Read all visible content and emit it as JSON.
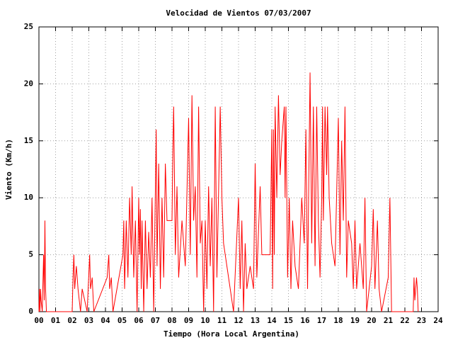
{
  "chart_data": {
    "type": "line",
    "title": "Velocidad de Vientos 07/03/2007",
    "x_label": "Tiempo (Hora Local Argentina)",
    "y_label": "Viento (Km/h)",
    "color": "#ff0000",
    "grid": true,
    "xlim": [
      0,
      24
    ],
    "ylim": [
      0,
      25
    ],
    "xticks": [
      {
        "value": 0,
        "label": "00"
      },
      {
        "value": 1,
        "label": "01"
      },
      {
        "value": 2,
        "label": "02"
      },
      {
        "value": 3,
        "label": "03"
      },
      {
        "value": 4,
        "label": "04"
      },
      {
        "value": 5,
        "label": "05"
      },
      {
        "value": 6,
        "label": "06"
      },
      {
        "value": 7,
        "label": "07"
      },
      {
        "value": 8,
        "label": "08"
      },
      {
        "value": 9,
        "label": "09"
      },
      {
        "value": 10,
        "label": "10"
      },
      {
        "value": 11,
        "label": "11"
      },
      {
        "value": 12,
        "label": "12"
      },
      {
        "value": 13,
        "label": "13"
      },
      {
        "value": 14,
        "label": "14"
      },
      {
        "value": 15,
        "label": "15"
      },
      {
        "value": 16,
        "label": "16"
      },
      {
        "value": 17,
        "label": "17"
      },
      {
        "value": 18,
        "label": "18"
      },
      {
        "value": 19,
        "label": "19"
      },
      {
        "value": 20,
        "label": "20"
      },
      {
        "value": 21,
        "label": "21"
      },
      {
        "value": 22,
        "label": "22"
      },
      {
        "value": 23,
        "label": "23"
      },
      {
        "value": 24,
        "label": "24"
      }
    ],
    "yticks": [
      0,
      5,
      10,
      15,
      20,
      25
    ],
    "x": [
      0,
      0.03,
      0.06,
      0.1,
      0.13,
      0.2,
      0.28,
      0.32,
      0.36,
      0.4,
      0.45,
      2,
      2.05,
      2.1,
      2.15,
      2.25,
      2.35,
      2.5,
      2.6,
      2.9,
      3.05,
      3.1,
      3.2,
      3.3,
      4.1,
      4.2,
      4.25,
      4.35,
      4.45,
      5.05,
      5.1,
      5.15,
      5.25,
      5.35,
      5.45,
      5.55,
      5.6,
      5.7,
      5.8,
      5.9,
      6,
      6.05,
      6.1,
      6.15,
      6.2,
      6.3,
      6.4,
      6.5,
      6.6,
      6.7,
      6.8,
      6.9,
      7.05,
      7.1,
      7.2,
      7.3,
      7.4,
      7.5,
      7.6,
      7.7,
      8,
      8.05,
      8.1,
      8.2,
      8.3,
      8.4,
      8.6,
      8.8,
      9,
      9.1,
      9.2,
      9.3,
      9.4,
      9.5,
      9.6,
      9.7,
      9.8,
      9.9,
      10,
      10.1,
      10.2,
      10.3,
      10.4,
      10.5,
      10.6,
      10.7,
      10.9,
      11,
      11.1,
      11.3,
      11.5,
      11.7,
      12,
      12.1,
      12.2,
      12.3,
      12.4,
      12.5,
      12.7,
      12.9,
      13,
      13.1,
      13.2,
      13.3,
      13.4,
      13.9,
      14,
      14.05,
      14.1,
      14.15,
      14.2,
      14.3,
      14.4,
      14.5,
      14.6,
      14.7,
      14.75,
      14.8,
      14.85,
      14.95,
      15.05,
      15.15,
      15.25,
      15.4,
      15.6,
      15.8,
      15.95,
      16.05,
      16.15,
      16.3,
      16.4,
      16.5,
      16.6,
      16.7,
      16.8,
      16.9,
      17,
      17.05,
      17.1,
      17.2,
      17.3,
      17.35,
      17.45,
      17.6,
      17.8,
      18,
      18.1,
      18.2,
      18.3,
      18.4,
      18.5,
      18.6,
      18.8,
      18.9,
      19,
      19.1,
      19.3,
      19.5,
      19.6,
      19.7,
      20,
      20.1,
      20.2,
      20.35,
      20.45,
      20.6,
      21,
      21.1,
      21.2,
      22.5,
      22.55,
      22.6,
      22.7,
      22.75,
      22.8
    ],
    "values": [
      0,
      2,
      0,
      2,
      1,
      0,
      5,
      1,
      8,
      2,
      0,
      0,
      3,
      5,
      2,
      4,
      2,
      0,
      2,
      0,
      5,
      2,
      3,
      0,
      3,
      5,
      2,
      3,
      0,
      5,
      8,
      2,
      8,
      3,
      10,
      5,
      11,
      3,
      8,
      0,
      10,
      5,
      9,
      2,
      8,
      0,
      8,
      2,
      7,
      3,
      10,
      0,
      16,
      4,
      13,
      2,
      10,
      3,
      13,
      8,
      8,
      14,
      18,
      5,
      11,
      3,
      8,
      4,
      17,
      5,
      19,
      8,
      11,
      3,
      18,
      6,
      8,
      0,
      8,
      2,
      11,
      4,
      10,
      0,
      18,
      3,
      18,
      10,
      6,
      4,
      2,
      0,
      10,
      2,
      8,
      0,
      6,
      2,
      4,
      2,
      13,
      3,
      7,
      11,
      5,
      5,
      16,
      2,
      16,
      5,
      18,
      10,
      19,
      12,
      15,
      17,
      18,
      10,
      18,
      3,
      10,
      2,
      8,
      4,
      2,
      10,
      6,
      16,
      2,
      21,
      6,
      18,
      4,
      18,
      8,
      3,
      10,
      18,
      8,
      18,
      12,
      18,
      10,
      6,
      4,
      17,
      5,
      15,
      8,
      18,
      3,
      8,
      6,
      2,
      8,
      2,
      6,
      2,
      10,
      0,
      4,
      9,
      2,
      8,
      2,
      0,
      3,
      10,
      0,
      0,
      3,
      1,
      3,
      2,
      0
    ]
  }
}
